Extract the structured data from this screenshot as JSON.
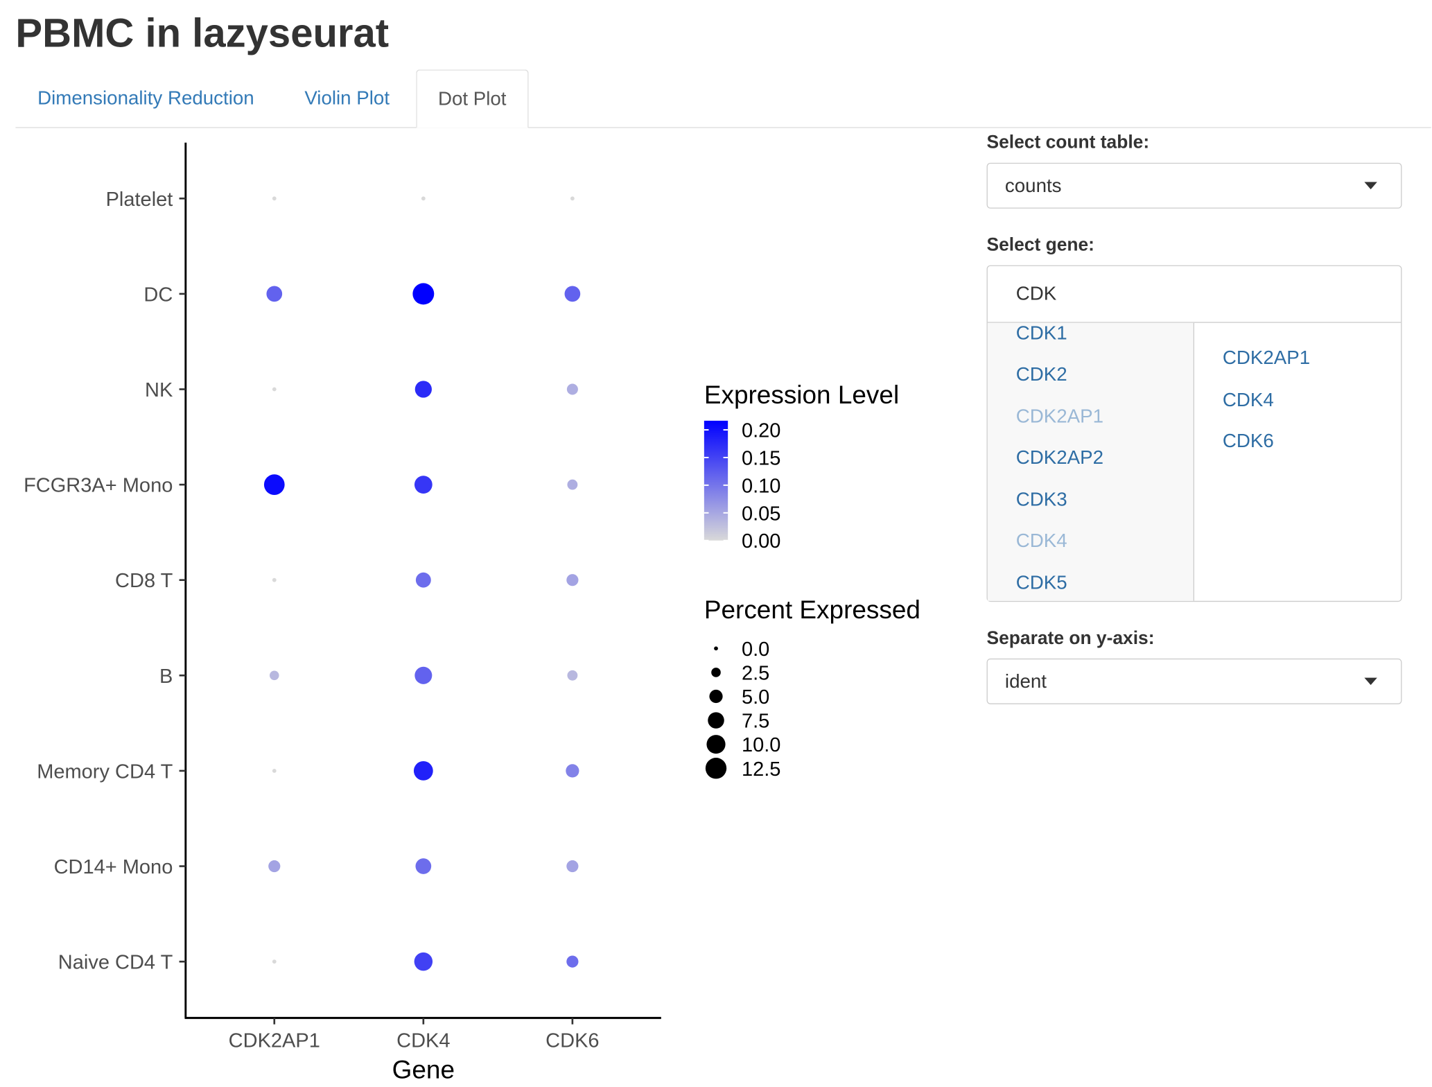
{
  "app": {
    "title": "PBMC in lazyseurat"
  },
  "tabs": [
    {
      "label": "Dimensionality Reduction"
    },
    {
      "label": "Violin Plot"
    },
    {
      "label": "Dot Plot"
    }
  ],
  "sidebar": {
    "count_table": {
      "label": "Select count table:",
      "value": "counts"
    },
    "gene": {
      "label": "Select gene:",
      "query": "CDK",
      "options": [
        {
          "label": "CDK1",
          "selected": false
        },
        {
          "label": "CDK2",
          "selected": false
        },
        {
          "label": "CDK2AP1",
          "selected": true
        },
        {
          "label": "CDK2AP2",
          "selected": false
        },
        {
          "label": "CDK3",
          "selected": false
        },
        {
          "label": "CDK4",
          "selected": true
        },
        {
          "label": "CDK5",
          "selected": false
        }
      ],
      "selected": [
        "CDK2AP1",
        "CDK4",
        "CDK6"
      ]
    },
    "y_axis": {
      "label": "Separate on y-axis:",
      "value": "ident"
    }
  },
  "chart_data": {
    "type": "dot",
    "xlabel": "Gene",
    "ylabel": "",
    "genes": [
      "CDK2AP1",
      "CDK4",
      "CDK6"
    ],
    "cell_types": [
      "Platelet",
      "DC",
      "NK",
      "FCGR3A+ Mono",
      "CD8 T",
      "B",
      "Memory CD4 T",
      "CD14+ Mono",
      "Naive CD4 T"
    ],
    "avg_expression": [
      [
        0.0,
        0.0,
        0.0
      ],
      [
        0.11,
        0.2,
        0.11
      ],
      [
        0.0,
        0.16,
        0.04
      ],
      [
        0.19,
        0.15,
        0.04
      ],
      [
        0.0,
        0.1,
        0.05
      ],
      [
        0.03,
        0.11,
        0.03
      ],
      [
        0.0,
        0.17,
        0.08
      ],
      [
        0.05,
        0.1,
        0.05
      ],
      [
        0.0,
        0.14,
        0.1
      ]
    ],
    "percent_expressed": [
      [
        0.0,
        0.0,
        0.0
      ],
      [
        7.0,
        13.0,
        7.0
      ],
      [
        0.0,
        8.0,
        3.5
      ],
      [
        12.0,
        9.0,
        3.0
      ],
      [
        0.0,
        6.5,
        4.0
      ],
      [
        2.5,
        8.5,
        3.0
      ],
      [
        0.0,
        10.5,
        5.0
      ],
      [
        4.0,
        7.0,
        4.0
      ],
      [
        0.0,
        9.5,
        4.0
      ]
    ],
    "color_legend": {
      "title": "Expression Level",
      "ticks": [
        "0.20",
        "0.15",
        "0.10",
        "0.05",
        "0.00"
      ],
      "low_color": "#d9d9d9",
      "high_color": "#0000ff",
      "min": 0.0,
      "max": 0.2
    },
    "size_legend": {
      "title": "Percent Expressed",
      "values": [
        0.0,
        2.5,
        5.0,
        7.5,
        10.0,
        12.5
      ],
      "labels": [
        "0.0",
        "2.5",
        "5.0",
        "7.5",
        "10.0",
        "12.5"
      ]
    },
    "grid": false
  }
}
